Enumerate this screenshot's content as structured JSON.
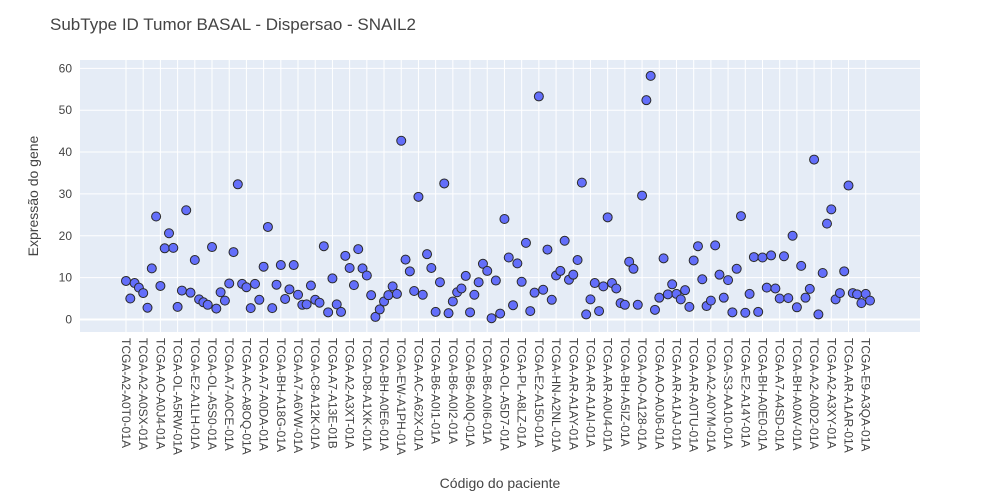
{
  "chart_data": {
    "type": "scatter",
    "title": "SubType ID Tumor BASAL - Dispersao - SNAIL2",
    "xlabel": "Código do paciente",
    "ylabel": "Expressão do gene",
    "ylim": [
      -3,
      62
    ],
    "yticks": [
      0,
      10,
      20,
      30,
      40,
      50,
      60
    ],
    "grid": true,
    "marker_color": "#636efa",
    "marker_edge": "#2a2a2a",
    "plot_bg": "#e5ecf6",
    "x_tick_labels": [
      "TCGA-A2-A0T0-01A",
      "TCGA-A2-A0SX-01A",
      "TCGA-AO-A0J4-01A",
      "TCGA-OL-A5RW-01A",
      "TCGA-E2-A1LH-01A",
      "TCGA-OL-A5S0-01A",
      "TCGA-A7-A0CE-01A",
      "TCGA-AC-A8OQ-01A",
      "TCGA-A7-A0DA-01A",
      "TCGA-BH-A18G-01A",
      "TCGA-A7-A6VW-01A",
      "TCGA-C8-A12K-01A",
      "TCGA-A7-A13E-01B",
      "TCGA-A2-A3XT-01A",
      "TCGA-D8-A1XK-01A",
      "TCGA-BH-A0E6-01A",
      "TCGA-EW-A1PH-01A",
      "TCGA-AC-A62X-01A",
      "TCGA-B6-A0I1-01A",
      "TCGA-B6-A0I2-01A",
      "TCGA-B6-A0IQ-01A",
      "TCGA-B6-A0I6-01A",
      "TCGA-OL-A5D7-01A",
      "TCGA-PL-A8LZ-01A",
      "TCGA-E2-A150-01A",
      "TCGA-HN-A2NL-01A",
      "TCGA-AR-A1AY-01A",
      "TCGA-AR-A1AI-01A",
      "TCGA-AR-A0U4-01A",
      "TCGA-BH-A5IZ-01A",
      "TCGA-AO-A128-01A",
      "TCGA-AO-A0J6-01A",
      "TCGA-AR-A1AJ-01A",
      "TCGA-AR-A0TU-01A",
      "TCGA-A2-A0YM-01A",
      "TCGA-S3-AA10-01A",
      "TCGA-E2-A14Y-01A",
      "TCGA-BH-A0E0-01A",
      "TCGA-A7-A4SD-01A",
      "TCGA-BH-A0AV-01A",
      "TCGA-A2-A0D2-01A",
      "TCGA-A2-A3XY-01A",
      "TCGA-AR-A1AR-01A",
      "TCGA-E9-A3QA-01A"
    ],
    "y": [
      9.2,
      5.0,
      8.7,
      7.6,
      6.3,
      2.8,
      12.2,
      24.6,
      8.0,
      17.0,
      20.6,
      17.1,
      3.0,
      6.9,
      26.1,
      6.4,
      14.2,
      4.8,
      4.1,
      3.5,
      17.3,
      2.6,
      6.5,
      4.5,
      8.6,
      16.1,
      32.3,
      8.5,
      7.7,
      2.7,
      8.5,
      4.7,
      12.6,
      22.1,
      2.7,
      8.3,
      13.0,
      4.9,
      7.2,
      13.0,
      5.9,
      3.5,
      3.6,
      8.1,
      4.7,
      4.0,
      17.5,
      1.7,
      9.8,
      3.6,
      1.8,
      15.2,
      12.3,
      8.2,
      16.8,
      12.2,
      10.5,
      5.8,
      0.6,
      2.4,
      4.3,
      5.8,
      7.9,
      6.1,
      42.7,
      14.3,
      11.5,
      6.8,
      29.3,
      5.9,
      15.6,
      12.3,
      1.8,
      8.9,
      32.5,
      1.5,
      4.3,
      6.5,
      7.4,
      10.4,
      1.7,
      5.9,
      8.9,
      13.3,
      11.6,
      0.3,
      9.3,
      1.4,
      24.0,
      14.8,
      3.4,
      13.4,
      9.0,
      18.3,
      2.0,
      6.4,
      53.3,
      7.1,
      16.7,
      4.7,
      10.5,
      11.6,
      18.8,
      9.5,
      10.7,
      14.2,
      32.7,
      1.2,
      4.8,
      8.7,
      2.0,
      7.9,
      24.4,
      8.7,
      7.4,
      3.9,
      3.5,
      13.8,
      12.1,
      3.5,
      29.6,
      52.4,
      58.2,
      2.3,
      5.2,
      14.6,
      6.0,
      8.4,
      6.1,
      4.8,
      7.0,
      3.0,
      14.1,
      17.5,
      9.6,
      3.2,
      4.5,
      17.7,
      10.7,
      5.2,
      9.4,
      1.7,
      12.1,
      24.7,
      1.6,
      6.1,
      14.9,
      1.8,
      14.8,
      7.6,
      15.3,
      7.4,
      5.0,
      15.1,
      5.1,
      20.0,
      2.9,
      12.8,
      5.2,
      7.3,
      38.2,
      1.2,
      11.1,
      22.9,
      26.3,
      4.8,
      6.3,
      11.5,
      32.0,
      6.3,
      6.0,
      3.9,
      6.1,
      4.5
    ]
  }
}
